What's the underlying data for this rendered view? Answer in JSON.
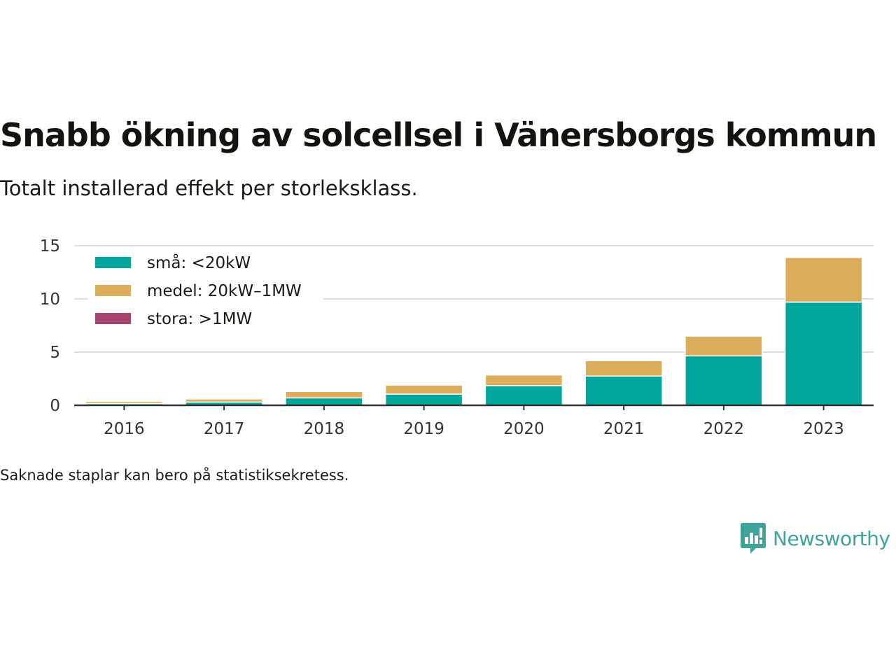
{
  "title": "Snabb ökning av solcellsel i Vänersborgs kommun",
  "subtitle": "Totalt installerad effekt per storleksklass.",
  "footnote": "Saknade staplar kan bero på statistiksekretess.",
  "brand": {
    "name": "Newsworthy",
    "icon": "newsworthy-logo-icon",
    "color": "#3ea39a"
  },
  "chart_data": {
    "type": "bar",
    "stacked": true,
    "categories": [
      "2016",
      "2017",
      "2018",
      "2019",
      "2020",
      "2021",
      "2022",
      "2023"
    ],
    "series": [
      {
        "name": "små: <20kW",
        "color": "#00a59b",
        "values": [
          0.15,
          0.3,
          0.7,
          1.05,
          1.85,
          2.75,
          4.65,
          9.7
        ]
      },
      {
        "name": "medel: 20kW–1MW",
        "color": "#dcad5a",
        "values": [
          0.2,
          0.3,
          0.6,
          0.85,
          1.0,
          1.45,
          1.85,
          4.2
        ]
      },
      {
        "name": "stora: >1MW",
        "color": "#a5446c",
        "values": [
          0,
          0,
          0,
          0,
          0,
          0,
          0,
          0
        ]
      }
    ],
    "ylim": [
      0,
      15
    ],
    "yticks": [
      0,
      5,
      10,
      15
    ],
    "xlabel": "",
    "ylabel": "",
    "grid": true,
    "legend_position": "top-left"
  }
}
